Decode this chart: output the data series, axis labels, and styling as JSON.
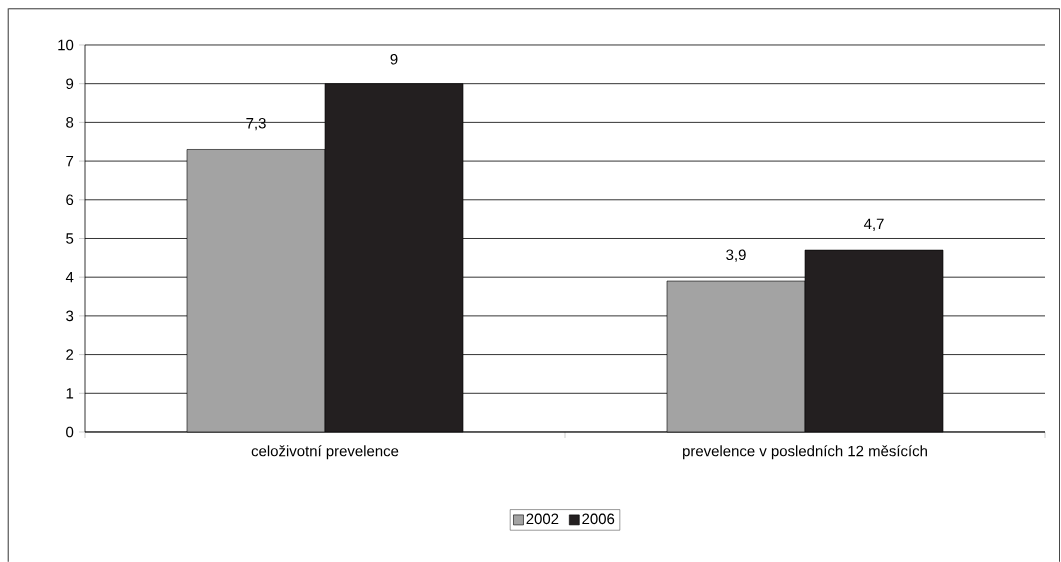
{
  "chart_data": {
    "type": "bar",
    "categories": [
      "celoživotní prevelence",
      "prevelence v posledních 12 měsících"
    ],
    "series": [
      {
        "name": "2002",
        "color": "#a3a3a3",
        "values": [
          7.3,
          3.9
        ],
        "value_labels": [
          "7,3",
          "3,9"
        ]
      },
      {
        "name": "2006",
        "color": "#231f20",
        "values": [
          9,
          4.7
        ],
        "value_labels": [
          "9",
          "4,7"
        ]
      }
    ],
    "ylim": [
      0,
      10
    ],
    "yticks": [
      0,
      1,
      2,
      3,
      4,
      5,
      6,
      7,
      8,
      9,
      10
    ],
    "grid": "y",
    "legend": "bottom"
  }
}
